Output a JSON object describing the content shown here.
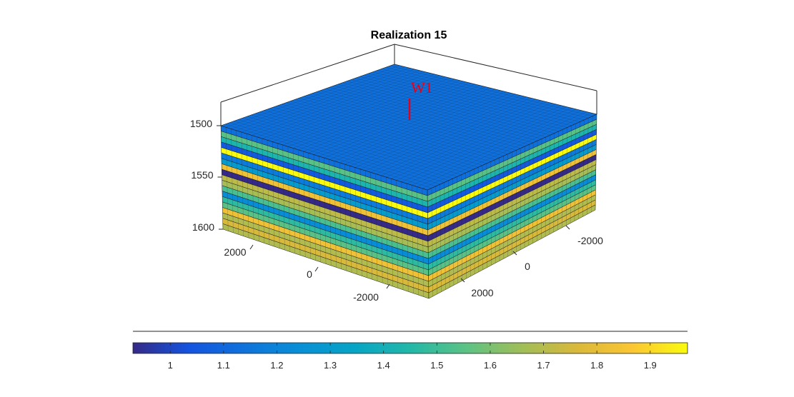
{
  "chart_data": {
    "type": "3d-layered-grid",
    "title": "Realization 15",
    "z_axis": {
      "ticks": [
        "1500",
        "1550",
        "1600"
      ],
      "direction": "reverse"
    },
    "x_axis": {
      "ticks": [
        "2000",
        "0",
        "-2000"
      ]
    },
    "y_axis": {
      "ticks": [
        "-2000",
        "0",
        "2000"
      ]
    },
    "well": {
      "label": "W1",
      "color": "#e3001b"
    },
    "top_value": 1.13,
    "layers": [
      {
        "value": 1.13
      },
      {
        "value": 1.55
      },
      {
        "value": 1.43
      },
      {
        "value": 1.06
      },
      {
        "value": 1.97
      },
      {
        "value": 1.17
      },
      {
        "value": 1.3
      },
      {
        "value": 1.83
      },
      {
        "value": 0.93
      },
      {
        "value": 1.71
      },
      {
        "value": 1.67
      },
      {
        "value": 1.52
      },
      {
        "value": 1.23
      },
      {
        "value": 1.47
      },
      {
        "value": 1.55
      },
      {
        "value": 1.83
      },
      {
        "value": 1.69
      },
      {
        "value": 1.76
      },
      {
        "value": 1.69
      }
    ],
    "colorbar": {
      "colormap": "parula",
      "min": 0.93,
      "max": 1.97,
      "ticks": [
        "1",
        "1.1",
        "1.2",
        "1.3",
        "1.4",
        "1.5",
        "1.6",
        "1.7",
        "1.8",
        "1.9"
      ],
      "location": "southoutside"
    }
  }
}
